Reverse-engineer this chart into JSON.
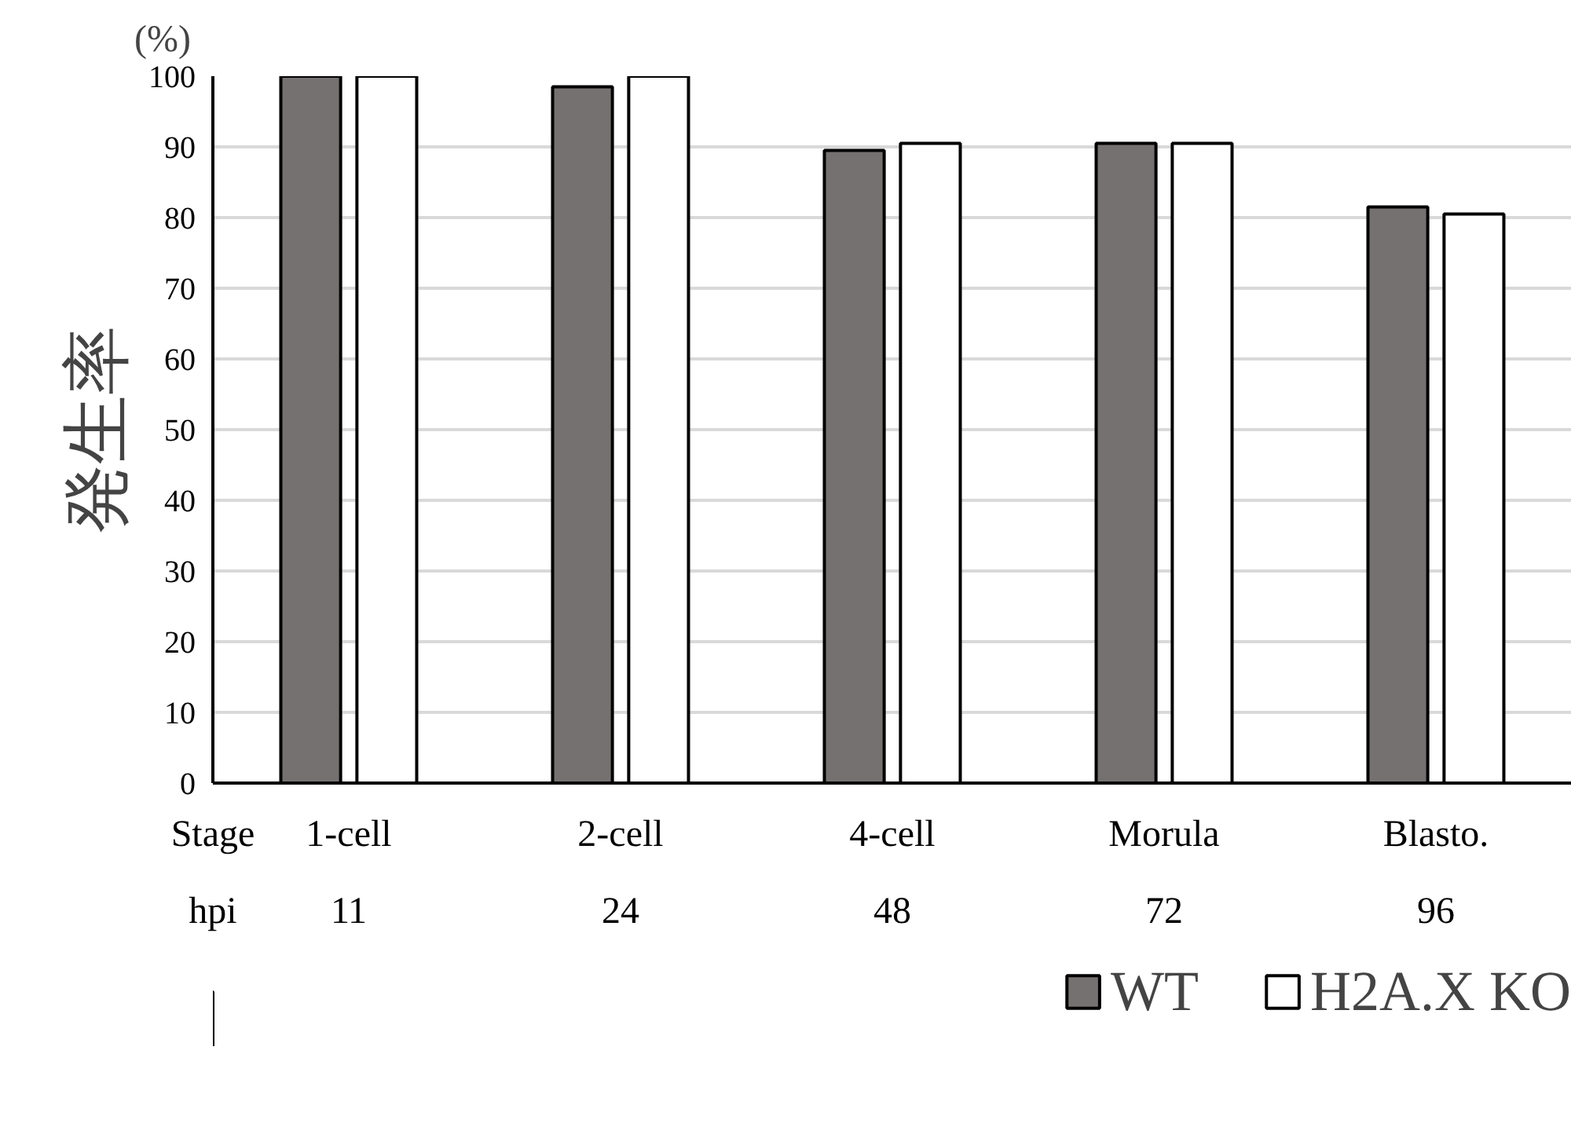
{
  "chart_data": {
    "type": "bar",
    "ylabel": "発生率",
    "categories": [
      "1-cell",
      "2-cell",
      "4-cell",
      "Morula",
      "Blasto."
    ],
    "series": [
      {
        "name": "WT",
        "color": "#767171",
        "values": [
          100,
          98.5,
          89.5,
          90.5,
          81.5
        ]
      },
      {
        "name": "H2A.X KO",
        "color": "#ffffff",
        "values": [
          100,
          100,
          90.5,
          90.5,
          80.5
        ]
      }
    ],
    "ylim": [
      0,
      100
    ],
    "yticks": [
      0,
      10,
      20,
      30,
      40,
      50,
      60,
      70,
      80,
      90,
      100
    ],
    "grid": "y",
    "legend": "bottom right",
    "annotations": [
      "(%)",
      "Stage",
      "hpi",
      "11",
      "24",
      "48",
      "72",
      "96"
    ]
  }
}
